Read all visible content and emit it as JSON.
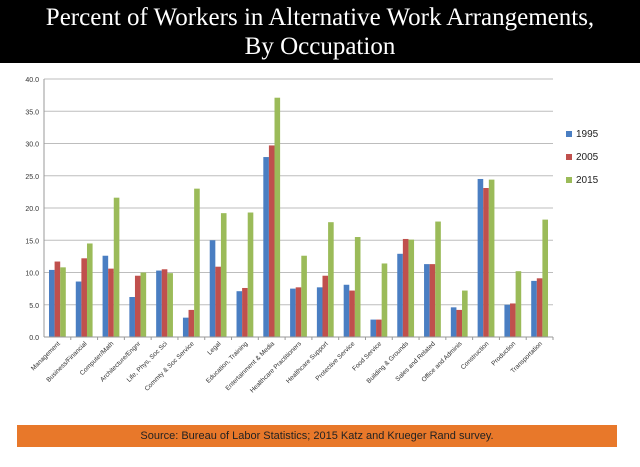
{
  "title_line1": "Percent of Workers in Alternative Work Arrangements,",
  "title_line2": "By Occupation",
  "source": "Source: Bureau of Labor Statistics; 2015 Katz and Krueger Rand survey.",
  "chart_data": {
    "type": "bar",
    "title": "",
    "xlabel": "",
    "ylabel": "",
    "ylim": [
      0,
      40
    ],
    "yticks": [
      "0.0",
      "5.0",
      "10.0",
      "15.0",
      "20.0",
      "25.0",
      "30.0",
      "35.0",
      "40.0"
    ],
    "grid": true,
    "legend_position": "right",
    "categories": [
      "Management",
      "Business/Financial",
      "Computer/Math",
      "Architecture/Engnr",
      "Life, Phys, Soc Sci",
      "Commty & Soc Service",
      "Legal",
      "Education, Training",
      "Entertainment & Media",
      "Healthcare Practitioners",
      "Healthcare Support",
      "Protective Service",
      "Food Service",
      "Building & Grounds",
      "Sales and Related",
      "Office and Adminis",
      "Construction",
      "Production",
      "Transportation"
    ],
    "series": [
      {
        "name": "1995",
        "color": "#4A7EC2",
        "values": [
          10.4,
          8.6,
          12.6,
          6.2,
          10.3,
          3.0,
          15.0,
          7.1,
          27.9,
          7.5,
          7.7,
          8.1,
          2.7,
          12.9,
          11.3,
          4.6,
          24.5,
          5.0,
          8.7
        ]
      },
      {
        "name": "2005",
        "color": "#C0504D",
        "values": [
          11.7,
          12.2,
          10.6,
          9.5,
          10.5,
          4.2,
          10.9,
          7.6,
          29.7,
          7.7,
          9.5,
          7.2,
          2.7,
          15.2,
          11.3,
          4.2,
          23.1,
          5.2,
          9.1
        ]
      },
      {
        "name": "2015",
        "color": "#9BBB59",
        "values": [
          10.8,
          14.5,
          21.6,
          10.0,
          9.9,
          23.0,
          19.2,
          19.3,
          37.1,
          12.6,
          17.8,
          15.5,
          11.4,
          15.1,
          17.9,
          7.2,
          24.4,
          10.2,
          18.2
        ]
      }
    ]
  }
}
